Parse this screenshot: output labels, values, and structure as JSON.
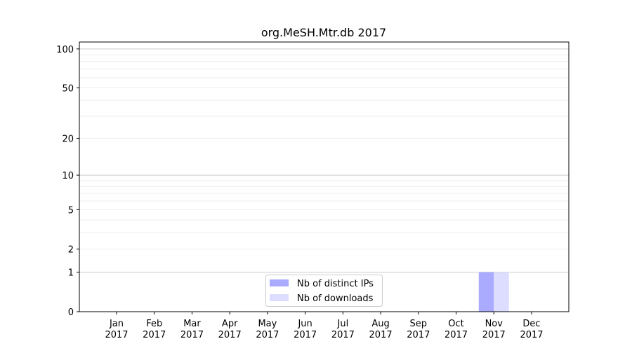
{
  "chart_data": {
    "type": "bar",
    "title": "org.MeSH.Mtr.db 2017",
    "xlabel": "",
    "ylabel": "",
    "yscale": "symlog",
    "ylim": [
      0,
      113
    ],
    "yticks": [
      0,
      1,
      2,
      5,
      10,
      20,
      50,
      100
    ],
    "ytick_labels": [
      "0",
      "1",
      "2",
      "5",
      "10",
      "20",
      "50",
      "100"
    ],
    "grid": true,
    "legend_position": "bottom-center",
    "categories": [
      "Jan\n2017",
      "Feb\n2017",
      "Mar\n2017",
      "Apr\n2017",
      "May\n2017",
      "Jun\n2017",
      "Jul\n2017",
      "Aug\n2017",
      "Sep\n2017",
      "Oct\n2017",
      "Nov\n2017",
      "Dec\n2017"
    ],
    "series": [
      {
        "name": "Nb of distinct IPs",
        "color": "#aaaaff",
        "values": [
          0,
          0,
          0,
          0,
          0,
          0,
          0,
          0,
          0,
          0,
          1,
          0
        ]
      },
      {
        "name": "Nb of downloads",
        "color": "#ddddff",
        "values": [
          0,
          0,
          0,
          0,
          0,
          0,
          0,
          0,
          0,
          0,
          1,
          0
        ]
      }
    ]
  }
}
